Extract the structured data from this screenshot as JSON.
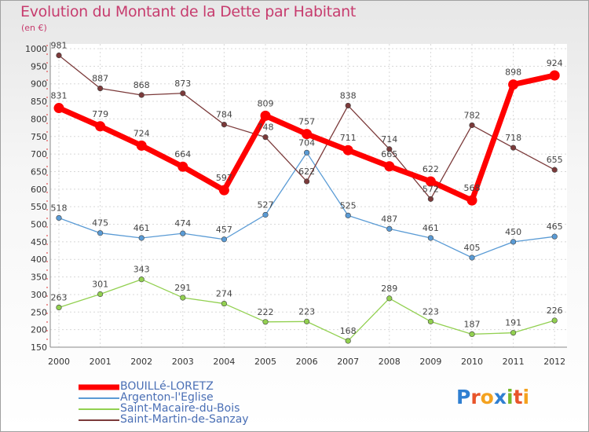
{
  "title": "Evolution du Montant de la Dette par Habitant",
  "subtitle": "(en €)",
  "logo": "Proxiti",
  "chart_data": {
    "type": "line",
    "x": [
      "2000",
      "2001",
      "2002",
      "2003",
      "2004",
      "2005",
      "2006",
      "2007",
      "2008",
      "2009",
      "2010",
      "2011",
      "2012"
    ],
    "ylim": [
      150,
      1000
    ],
    "yticks": [
      150,
      200,
      250,
      300,
      350,
      400,
      450,
      500,
      550,
      600,
      650,
      700,
      750,
      800,
      850,
      900,
      950,
      1000
    ],
    "grid": true,
    "legend_position": "bottom-left",
    "series": [
      {
        "name": "BOUILLé-LORETZ",
        "color": "#ff0000",
        "values": [
          831,
          779,
          724,
          664,
          597,
          809,
          757,
          711,
          665,
          622,
          568,
          898,
          924
        ]
      },
      {
        "name": "Argenton-l'Eglise",
        "color": "#5a9bd5",
        "values": [
          518,
          475,
          461,
          474,
          457,
          527,
          704,
          525,
          487,
          461,
          405,
          450,
          465
        ]
      },
      {
        "name": "Saint-Macaire-du-Bois",
        "color": "#92d050",
        "values": [
          263,
          301,
          343,
          291,
          274,
          222,
          223,
          168,
          289,
          223,
          187,
          191,
          226
        ]
      },
      {
        "name": "Saint-Martin-de-Sanzay",
        "color": "#7b3a3a",
        "values": [
          981,
          887,
          868,
          873,
          784,
          748,
          622,
          838,
          714,
          572,
          782,
          718,
          655
        ]
      }
    ]
  }
}
